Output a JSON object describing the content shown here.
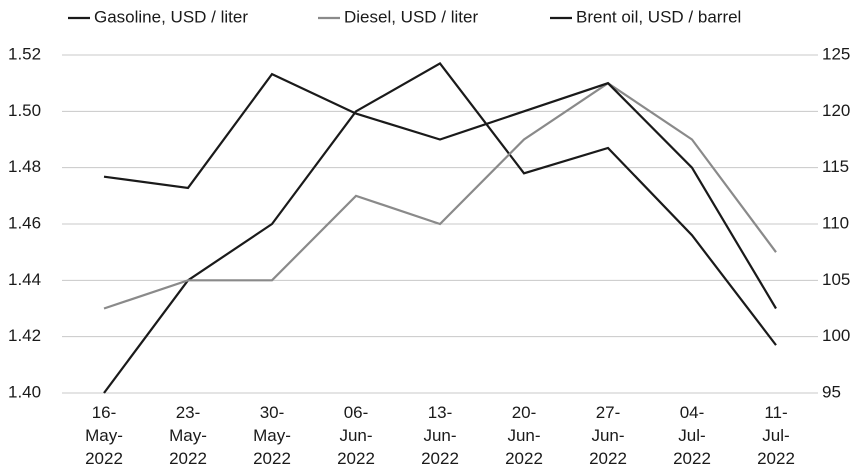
{
  "chart_data": {
    "type": "line",
    "categories": [
      "16-May-2022",
      "23-May-2022",
      "30-May-2022",
      "06-Jun-2022",
      "13-Jun-2022",
      "20-Jun-2022",
      "27-Jun-2022",
      "04-Jul-2022",
      "11-Jul-2022"
    ],
    "series": [
      {
        "name": "Gasoline, USD / liter",
        "color": "#1a1a1a",
        "values": [
          1.4,
          1.44,
          1.46,
          1.5,
          1.517,
          1.478,
          1.487,
          1.456,
          1.417
        ]
      },
      {
        "name": "Diesel, USD / liter",
        "color": "#8a8a8a",
        "values": [
          1.43,
          1.44,
          1.44,
          1.47,
          1.46,
          1.49,
          1.51,
          1.49,
          1.45
        ]
      },
      {
        "name": "Brent oil, USD / barrel",
        "color": "#1a1a1a",
        "axis": "y2",
        "values": [
          114.2,
          113.2,
          123.3,
          119.8,
          117.5,
          120,
          122.5,
          115,
          102.5
        ]
      }
    ],
    "ylim": [
      1.4,
      1.52
    ],
    "yticks": [
      {
        "value": 1.4,
        "label": "1.40"
      },
      1.42,
      1.44,
      1.46,
      1.48,
      {
        "value": 1.5,
        "label": "1.50"
      },
      1.52
    ],
    "y2lim": [
      95,
      125
    ],
    "y2ticks": [
      95,
      100,
      105,
      110,
      115,
      120,
      125
    ],
    "grid": true,
    "legend": "top"
  }
}
